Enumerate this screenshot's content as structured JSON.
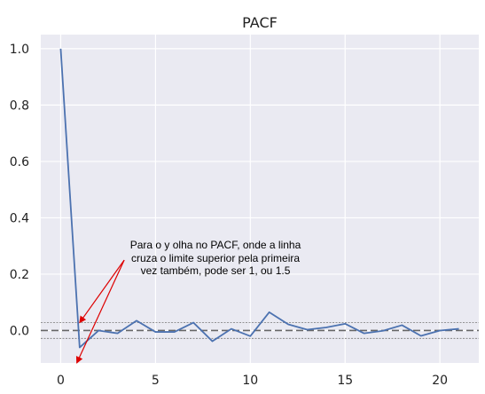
{
  "chart_data": {
    "type": "line",
    "title": "PACF",
    "xlabel": "",
    "ylabel": "",
    "xlim": [
      -1.05,
      22.05
    ],
    "ylim": [
      -0.115,
      1.05
    ],
    "xticks": [
      0,
      5,
      10,
      15,
      20
    ],
    "yticks": [
      0.0,
      0.2,
      0.4,
      0.6,
      0.8,
      1.0
    ],
    "xtick_labels": [
      "0",
      "5",
      "10",
      "15",
      "20"
    ],
    "ytick_labels": [
      "0.0",
      "0.2",
      "0.4",
      "0.6",
      "0.8",
      "1.0"
    ],
    "grid": true,
    "background": "#eaeaf2",
    "line_color": "#4c72b0",
    "series": [
      {
        "x": [
          0,
          1,
          2,
          3,
          4,
          5,
          6,
          7,
          8,
          9,
          10,
          11,
          12,
          13,
          14,
          15,
          16,
          17,
          18,
          19,
          20,
          21
        ],
        "values": [
          1.0,
          -0.06,
          0.0,
          -0.01,
          0.035,
          -0.005,
          -0.005,
          0.028,
          -0.038,
          0.006,
          -0.02,
          0.065,
          0.022,
          0.003,
          0.011,
          0.024,
          -0.01,
          -0.001,
          0.019,
          -0.019,
          0.0,
          0.006
        ]
      }
    ],
    "confidence_band": {
      "upper": 0.028,
      "lower": -0.028,
      "color": "#888888"
    },
    "zero_line": {
      "value": 0.0,
      "color": "#666666"
    },
    "annotation": {
      "lines": [
        "Para o y olha no PACF, onde a linha",
        "cruza o limite superior pela primeira",
        "vez também, pode ser 1, ou 1.5"
      ],
      "arrow_color": "#dd0000",
      "arrow_targets": [
        {
          "x": 1.0,
          "y": 0.028
        },
        {
          "x": 0.85,
          "y": -0.115
        }
      ],
      "arrow_origin": {
        "x": 3.35,
        "y": 0.25
      }
    }
  }
}
